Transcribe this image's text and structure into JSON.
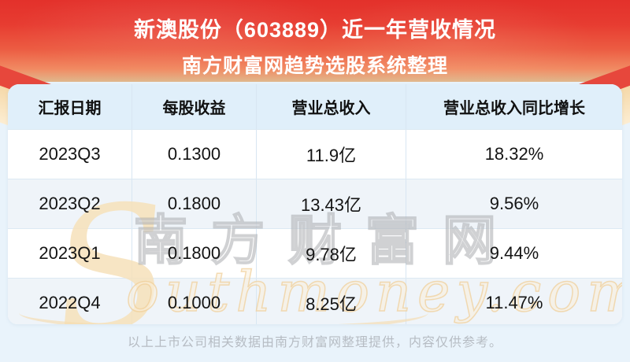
{
  "banner": {
    "title": "新澳股份（603889）近一年营收情况",
    "subtitle": "南方财富网趋势选股系统整理"
  },
  "table": {
    "headers": [
      "汇报日期",
      "每股收益",
      "营业总收入",
      "营业总收入同比增长"
    ],
    "rows": [
      [
        "2023Q3",
        "0.1300",
        "11.9亿",
        "18.32%"
      ],
      [
        "2023Q2",
        "0.1800",
        "13.43亿",
        "9.56%"
      ],
      [
        "2023Q1",
        "0.1800",
        "9.78亿",
        "9.44%"
      ],
      [
        "2022Q4",
        "0.1000",
        "8.25亿",
        "11.47%"
      ]
    ]
  },
  "watermark": {
    "cn": "南方财富网",
    "s": "S",
    "script": "outhmoney.com"
  },
  "footer": {
    "disclaimer": "以上上市公司相关数据由南方财富网整理提供，内容仅供参考。"
  },
  "colors": {
    "banner_red_top": "#e3312b",
    "banner_red_bottom": "#f18a62",
    "ribbon_cream": "#f5d8a8",
    "header_bg": "#e0effa",
    "alt_row_bg": "#eff4f9",
    "divider": "#dce9f3",
    "page_bg": "#e9f3fb",
    "footer_text": "#b6bcc3"
  },
  "chart_data": {
    "type": "table",
    "title": "新澳股份（603889）近一年营收情况",
    "subtitle": "南方财富网趋势选股系统整理",
    "columns": [
      "汇报日期",
      "每股收益",
      "营业总收入",
      "营业总收入同比增长"
    ],
    "rows": [
      {
        "report_date": "2023Q3",
        "eps": 0.13,
        "total_revenue": "11.9亿",
        "revenue_yoy_growth_pct": 18.32
      },
      {
        "report_date": "2023Q2",
        "eps": 0.18,
        "total_revenue": "13.43亿",
        "revenue_yoy_growth_pct": 9.56
      },
      {
        "report_date": "2023Q1",
        "eps": 0.18,
        "total_revenue": "9.78亿",
        "revenue_yoy_growth_pct": 9.44
      },
      {
        "report_date": "2022Q4",
        "eps": 0.1,
        "total_revenue": "8.25亿",
        "revenue_yoy_growth_pct": 11.47
      }
    ]
  }
}
